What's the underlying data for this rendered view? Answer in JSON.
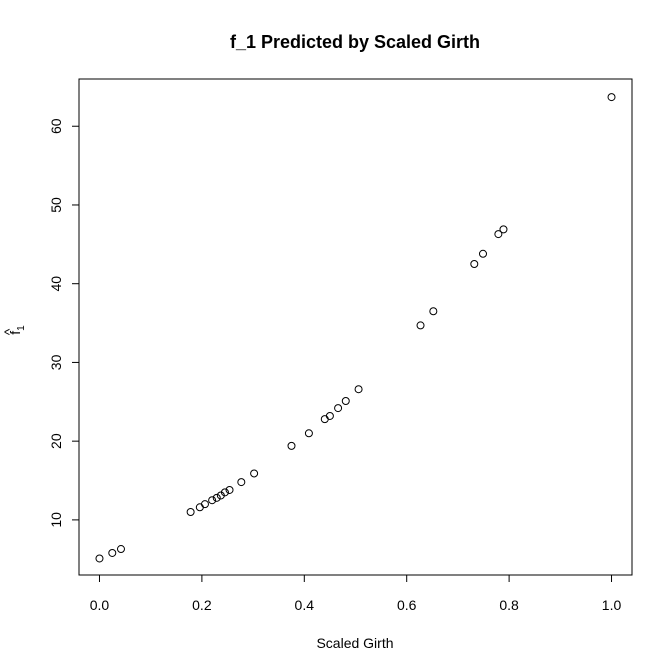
{
  "chart_data": {
    "type": "scatter",
    "title": "f_1 Predicted by Scaled Girth",
    "xlabel": "Scaled Girth",
    "ylabel_base": "f",
    "ylabel_sub": "1",
    "ylabel_hat": "^",
    "xlim": [
      -0.04,
      1.04
    ],
    "ylim": [
      3.0,
      66.0
    ],
    "xticks": [
      0.0,
      0.2,
      0.4,
      0.6,
      0.8,
      1.0
    ],
    "xtick_labels": [
      "0.0",
      "0.2",
      "0.4",
      "0.6",
      "0.8",
      "1.0"
    ],
    "yticks": [
      10,
      20,
      30,
      40,
      50,
      60
    ],
    "ytick_labels": [
      "10",
      "20",
      "30",
      "40",
      "50",
      "60"
    ],
    "grid": false,
    "points": [
      {
        "x": 0.0,
        "y": 5.1
      },
      {
        "x": 0.025,
        "y": 5.8
      },
      {
        "x": 0.042,
        "y": 6.3
      },
      {
        "x": 0.178,
        "y": 11.0
      },
      {
        "x": 0.196,
        "y": 11.6
      },
      {
        "x": 0.206,
        "y": 12.0
      },
      {
        "x": 0.22,
        "y": 12.5
      },
      {
        "x": 0.229,
        "y": 12.8
      },
      {
        "x": 0.237,
        "y": 13.1
      },
      {
        "x": 0.245,
        "y": 13.5
      },
      {
        "x": 0.254,
        "y": 13.8
      },
      {
        "x": 0.277,
        "y": 14.8
      },
      {
        "x": 0.302,
        "y": 15.9
      },
      {
        "x": 0.375,
        "y": 19.4
      },
      {
        "x": 0.409,
        "y": 21.0
      },
      {
        "x": 0.44,
        "y": 22.8
      },
      {
        "x": 0.45,
        "y": 23.2
      },
      {
        "x": 0.466,
        "y": 24.2
      },
      {
        "x": 0.481,
        "y": 25.1
      },
      {
        "x": 0.506,
        "y": 26.6
      },
      {
        "x": 0.627,
        "y": 34.7
      },
      {
        "x": 0.652,
        "y": 36.5
      },
      {
        "x": 0.732,
        "y": 42.5
      },
      {
        "x": 0.749,
        "y": 43.8
      },
      {
        "x": 0.779,
        "y": 46.3
      },
      {
        "x": 0.789,
        "y": 46.9
      },
      {
        "x": 1.0,
        "y": 63.7
      }
    ]
  }
}
